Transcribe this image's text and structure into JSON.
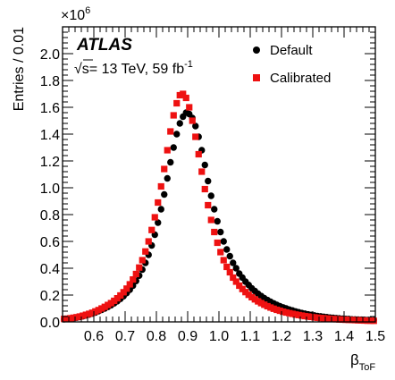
{
  "chart_data": {
    "type": "scatter",
    "experiment": "ATLAS",
    "energy_label_prefix": "s",
    "energy_label": "= 13 TeV, 59 fb",
    "energy_label_sup": "-1",
    "xlabel": "β",
    "xlabel_sub": "ToF",
    "ylabel": "Entries / 0.01",
    "y_multiplier_prefix": "×10",
    "y_multiplier_exp": "6",
    "xlim": [
      0.5,
      1.5
    ],
    "ylim": [
      0,
      2.2
    ],
    "x_ticks": [
      0.6,
      0.7,
      0.8,
      0.9,
      1.0,
      1.1,
      1.2,
      1.3,
      1.4,
      1.5
    ],
    "x_tick_labels": [
      "0.6",
      "0.7",
      "0.8",
      "0.9",
      "1.0",
      "1.1",
      "1.2",
      "1.3",
      "1.4",
      "1.5"
    ],
    "y_ticks": [
      0,
      0.2,
      0.4,
      0.6,
      0.8,
      1.0,
      1.2,
      1.4,
      1.6,
      1.8,
      2.0
    ],
    "y_tick_labels": [
      "0.0",
      "0.2",
      "0.4",
      "0.6",
      "0.8",
      "1.0",
      "1.2",
      "1.4",
      "1.6",
      "1.8",
      "2.0"
    ],
    "legend_position": "top-right",
    "grid": false,
    "series": [
      {
        "name": "Default",
        "marker": "circle",
        "color": "#000000",
        "x": [
          0.505,
          0.515,
          0.525,
          0.535,
          0.545,
          0.555,
          0.565,
          0.575,
          0.585,
          0.595,
          0.605,
          0.615,
          0.625,
          0.635,
          0.645,
          0.655,
          0.665,
          0.675,
          0.685,
          0.695,
          0.705,
          0.715,
          0.725,
          0.735,
          0.745,
          0.755,
          0.765,
          0.775,
          0.785,
          0.795,
          0.805,
          0.815,
          0.825,
          0.835,
          0.845,
          0.855,
          0.865,
          0.875,
          0.885,
          0.895,
          0.905,
          0.915,
          0.925,
          0.935,
          0.945,
          0.955,
          0.965,
          0.975,
          0.985,
          0.995,
          1.005,
          1.015,
          1.025,
          1.035,
          1.045,
          1.055,
          1.065,
          1.075,
          1.085,
          1.095,
          1.105,
          1.115,
          1.125,
          1.135,
          1.145,
          1.155,
          1.165,
          1.175,
          1.185,
          1.195,
          1.205,
          1.215,
          1.225,
          1.235,
          1.245,
          1.255,
          1.265,
          1.275,
          1.285,
          1.295,
          1.305,
          1.315,
          1.325,
          1.335,
          1.345,
          1.355,
          1.365,
          1.375,
          1.385,
          1.395,
          1.405,
          1.415,
          1.425,
          1.435,
          1.445,
          1.455,
          1.465,
          1.475,
          1.485,
          1.495
        ],
        "y": [
          0.02,
          0.022,
          0.025,
          0.028,
          0.032,
          0.037,
          0.042,
          0.048,
          0.055,
          0.062,
          0.07,
          0.08,
          0.09,
          0.1,
          0.112,
          0.124,
          0.138,
          0.154,
          0.172,
          0.192,
          0.215,
          0.24,
          0.27,
          0.305,
          0.345,
          0.39,
          0.44,
          0.5,
          0.57,
          0.65,
          0.74,
          0.84,
          0.95,
          1.07,
          1.19,
          1.3,
          1.4,
          1.48,
          1.53,
          1.56,
          1.55,
          1.52,
          1.46,
          1.38,
          1.28,
          1.17,
          1.05,
          0.94,
          0.84,
          0.75,
          0.67,
          0.6,
          0.54,
          0.49,
          0.44,
          0.4,
          0.36,
          0.33,
          0.3,
          0.275,
          0.25,
          0.23,
          0.21,
          0.193,
          0.177,
          0.163,
          0.15,
          0.138,
          0.127,
          0.117,
          0.108,
          0.1,
          0.092,
          0.085,
          0.078,
          0.072,
          0.066,
          0.061,
          0.056,
          0.052,
          0.048,
          0.044,
          0.041,
          0.038,
          0.035,
          0.032,
          0.03,
          0.028,
          0.026,
          0.024,
          0.022,
          0.021,
          0.019,
          0.018,
          0.017,
          0.016,
          0.015,
          0.014,
          0.013,
          0.012
        ]
      },
      {
        "name": "Calibrated",
        "marker": "square",
        "color": "#ee1111",
        "x": [
          0.505,
          0.515,
          0.525,
          0.535,
          0.545,
          0.555,
          0.565,
          0.575,
          0.585,
          0.595,
          0.605,
          0.615,
          0.625,
          0.635,
          0.645,
          0.655,
          0.665,
          0.675,
          0.685,
          0.695,
          0.705,
          0.715,
          0.725,
          0.735,
          0.745,
          0.755,
          0.765,
          0.775,
          0.785,
          0.795,
          0.805,
          0.815,
          0.825,
          0.835,
          0.845,
          0.855,
          0.865,
          0.875,
          0.885,
          0.895,
          0.905,
          0.915,
          0.925,
          0.935,
          0.945,
          0.955,
          0.965,
          0.975,
          0.985,
          0.995,
          1.005,
          1.015,
          1.025,
          1.035,
          1.045,
          1.055,
          1.065,
          1.075,
          1.085,
          1.095,
          1.105,
          1.115,
          1.125,
          1.135,
          1.145,
          1.155,
          1.165,
          1.175,
          1.185,
          1.195,
          1.205,
          1.215,
          1.225,
          1.235,
          1.245,
          1.255,
          1.265,
          1.275,
          1.285,
          1.295,
          1.305,
          1.315,
          1.325,
          1.335,
          1.345,
          1.355,
          1.365,
          1.375,
          1.385,
          1.395,
          1.405,
          1.415,
          1.425,
          1.435,
          1.445,
          1.455,
          1.465,
          1.475,
          1.485,
          1.495
        ],
        "y": [
          0.022,
          0.024,
          0.027,
          0.031,
          0.035,
          0.04,
          0.046,
          0.053,
          0.06,
          0.068,
          0.078,
          0.088,
          0.1,
          0.112,
          0.126,
          0.14,
          0.157,
          0.176,
          0.197,
          0.221,
          0.248,
          0.28,
          0.316,
          0.357,
          0.405,
          0.46,
          0.525,
          0.6,
          0.685,
          0.78,
          0.89,
          1.01,
          1.14,
          1.28,
          1.42,
          1.54,
          1.63,
          1.69,
          1.7,
          1.67,
          1.6,
          1.5,
          1.38,
          1.25,
          1.12,
          0.99,
          0.87,
          0.76,
          0.67,
          0.59,
          0.52,
          0.46,
          0.41,
          0.37,
          0.33,
          0.3,
          0.27,
          0.245,
          0.222,
          0.202,
          0.184,
          0.168,
          0.153,
          0.14,
          0.128,
          0.117,
          0.107,
          0.098,
          0.09,
          0.083,
          0.076,
          0.07,
          0.065,
          0.06,
          0.055,
          0.051,
          0.047,
          0.043,
          0.04,
          0.037,
          0.034,
          0.031,
          0.029,
          0.027,
          0.025,
          0.023,
          0.021,
          0.02,
          0.018,
          0.017,
          0.016,
          0.015,
          0.014,
          0.013,
          0.012,
          0.011,
          0.01,
          0.009,
          0.009,
          0.008
        ]
      }
    ]
  }
}
